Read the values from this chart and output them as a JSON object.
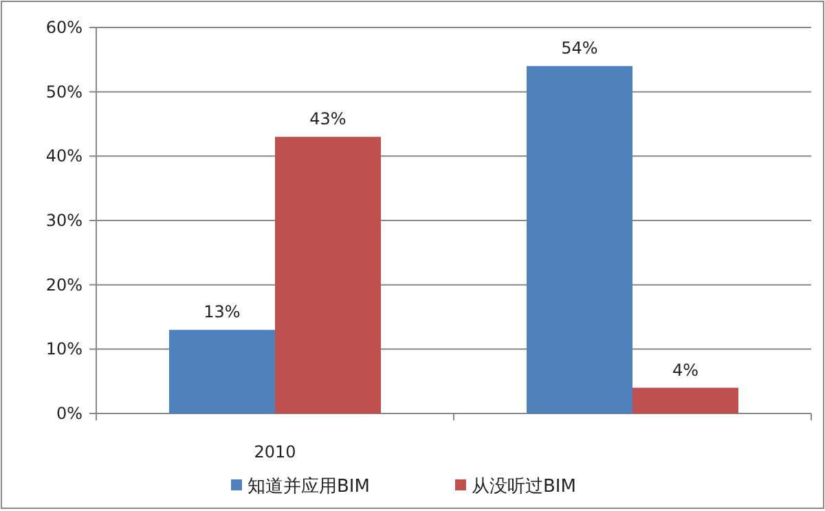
{
  "chart_data": {
    "type": "bar",
    "categories": [
      "2010",
      null
    ],
    "series": [
      {
        "name": "知道并应用BIM",
        "color": "#4f81bd",
        "values": [
          13,
          54
        ],
        "value_labels": [
          "13%",
          "54%"
        ]
      },
      {
        "name": "从没听过BIM",
        "color": "#c0504d",
        "values": [
          43,
          4
        ],
        "value_labels": [
          "43%",
          "4%"
        ]
      }
    ],
    "ylim": [
      0,
      60
    ],
    "yticks": [
      {
        "value": 0,
        "label": "0%"
      },
      {
        "value": 10,
        "label": "10%"
      },
      {
        "value": 20,
        "label": "20%"
      },
      {
        "value": 30,
        "label": "30%"
      },
      {
        "value": 40,
        "label": "40%"
      },
      {
        "value": 50,
        "label": "50%"
      },
      {
        "value": 60,
        "label": "60%"
      }
    ],
    "grid": "y",
    "legend": "bottom"
  }
}
